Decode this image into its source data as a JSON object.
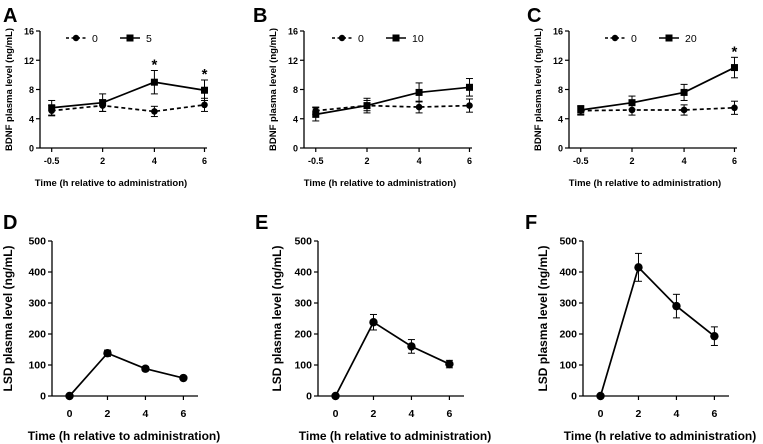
{
  "chart_data": [
    {
      "panel": "A",
      "type": "line",
      "ylabel": "BDNF plasma level (ng/mL)",
      "xlabel": "Time (h relative to administration)",
      "categories": [
        "-0.5",
        "2",
        "4",
        "6"
      ],
      "yticks": [
        "0",
        "4",
        "8",
        "12",
        "16"
      ],
      "ylim": [
        0,
        16
      ],
      "series": [
        {
          "name": "0",
          "marker": "circle",
          "dashed": true,
          "values": [
            5.1,
            5.8,
            5.0,
            5.9
          ],
          "errors": [
            0.7,
            0.8,
            0.7,
            0.9
          ]
        },
        {
          "name": "5",
          "marker": "square",
          "dashed": false,
          "values": [
            5.5,
            6.2,
            9.0,
            7.9
          ],
          "errors": [
            1.0,
            1.2,
            1.6,
            1.4
          ]
        }
      ],
      "significance": [
        {
          "label": "*",
          "category": "4"
        },
        {
          "label": "*",
          "category": "6"
        }
      ]
    },
    {
      "panel": "B",
      "type": "line",
      "ylabel": "BDNF plasma level (ng/mL)",
      "xlabel": "Time (h relative to administration)",
      "categories": [
        "-0.5",
        "2",
        "4",
        "6"
      ],
      "yticks": [
        "0",
        "4",
        "8",
        "12",
        "16"
      ],
      "ylim": [
        0,
        16
      ],
      "series": [
        {
          "name": "0",
          "marker": "circle",
          "dashed": true,
          "values": [
            5.1,
            5.8,
            5.6,
            5.8
          ],
          "errors": [
            0.5,
            0.7,
            0.8,
            0.9
          ]
        },
        {
          "name": "10",
          "marker": "square",
          "dashed": false,
          "values": [
            4.6,
            5.8,
            7.6,
            8.3
          ],
          "errors": [
            0.9,
            1.0,
            1.3,
            1.2
          ]
        }
      ],
      "significance": []
    },
    {
      "panel": "C",
      "type": "line",
      "ylabel": "BDNF plasma level (ng/mL)",
      "xlabel": "Time (h relative to administration)",
      "categories": [
        "-0.5",
        "2",
        "4",
        "6"
      ],
      "yticks": [
        "0",
        "4",
        "8",
        "12",
        "16"
      ],
      "ylim": [
        0,
        16
      ],
      "series": [
        {
          "name": "0",
          "marker": "circle",
          "dashed": true,
          "values": [
            5.1,
            5.2,
            5.2,
            5.5
          ],
          "errors": [
            0.6,
            0.7,
            0.7,
            0.9
          ]
        },
        {
          "name": "20",
          "marker": "square",
          "dashed": false,
          "values": [
            5.2,
            6.2,
            7.6,
            11.0
          ],
          "errors": [
            0.6,
            0.9,
            1.1,
            1.4
          ]
        }
      ],
      "significance": [
        {
          "label": "*",
          "category": "6"
        }
      ]
    },
    {
      "panel": "D",
      "type": "line",
      "ylabel": "LSD plasma level (ng/mL)",
      "xlabel": "Time (h relative to administration)",
      "categories": [
        "0",
        "2",
        "4",
        "6"
      ],
      "yticks": [
        "0",
        "100",
        "200",
        "300",
        "400",
        "500"
      ],
      "ylim": [
        0,
        500
      ],
      "series": [
        {
          "name": "LSD",
          "marker": "circle",
          "dashed": false,
          "values": [
            0,
            138,
            88,
            58
          ],
          "errors": [
            0,
            10,
            7,
            4
          ]
        }
      ],
      "significance": []
    },
    {
      "panel": "E",
      "type": "line",
      "ylabel": "LSD plasma level (ng/mL)",
      "xlabel": "Time (h relative to administration)",
      "categories": [
        "0",
        "2",
        "4",
        "6"
      ],
      "yticks": [
        "0",
        "100",
        "200",
        "300",
        "400",
        "500"
      ],
      "ylim": [
        0,
        500
      ],
      "series": [
        {
          "name": "LSD",
          "marker": "circle",
          "dashed": false,
          "values": [
            0,
            238,
            160,
            103
          ],
          "errors": [
            0,
            25,
            22,
            12
          ]
        }
      ],
      "significance": []
    },
    {
      "panel": "F",
      "type": "line",
      "ylabel": "LSD plasma level (ng/mL)",
      "xlabel": "Time (h relative to administration)",
      "categories": [
        "0",
        "2",
        "4",
        "6"
      ],
      "yticks": [
        "0",
        "100",
        "200",
        "300",
        "400",
        "500"
      ],
      "ylim": [
        0,
        500
      ],
      "series": [
        {
          "name": "LSD",
          "marker": "circle",
          "dashed": false,
          "values": [
            0,
            415,
            290,
            193
          ],
          "errors": [
            0,
            45,
            38,
            30
          ]
        }
      ],
      "significance": []
    }
  ]
}
